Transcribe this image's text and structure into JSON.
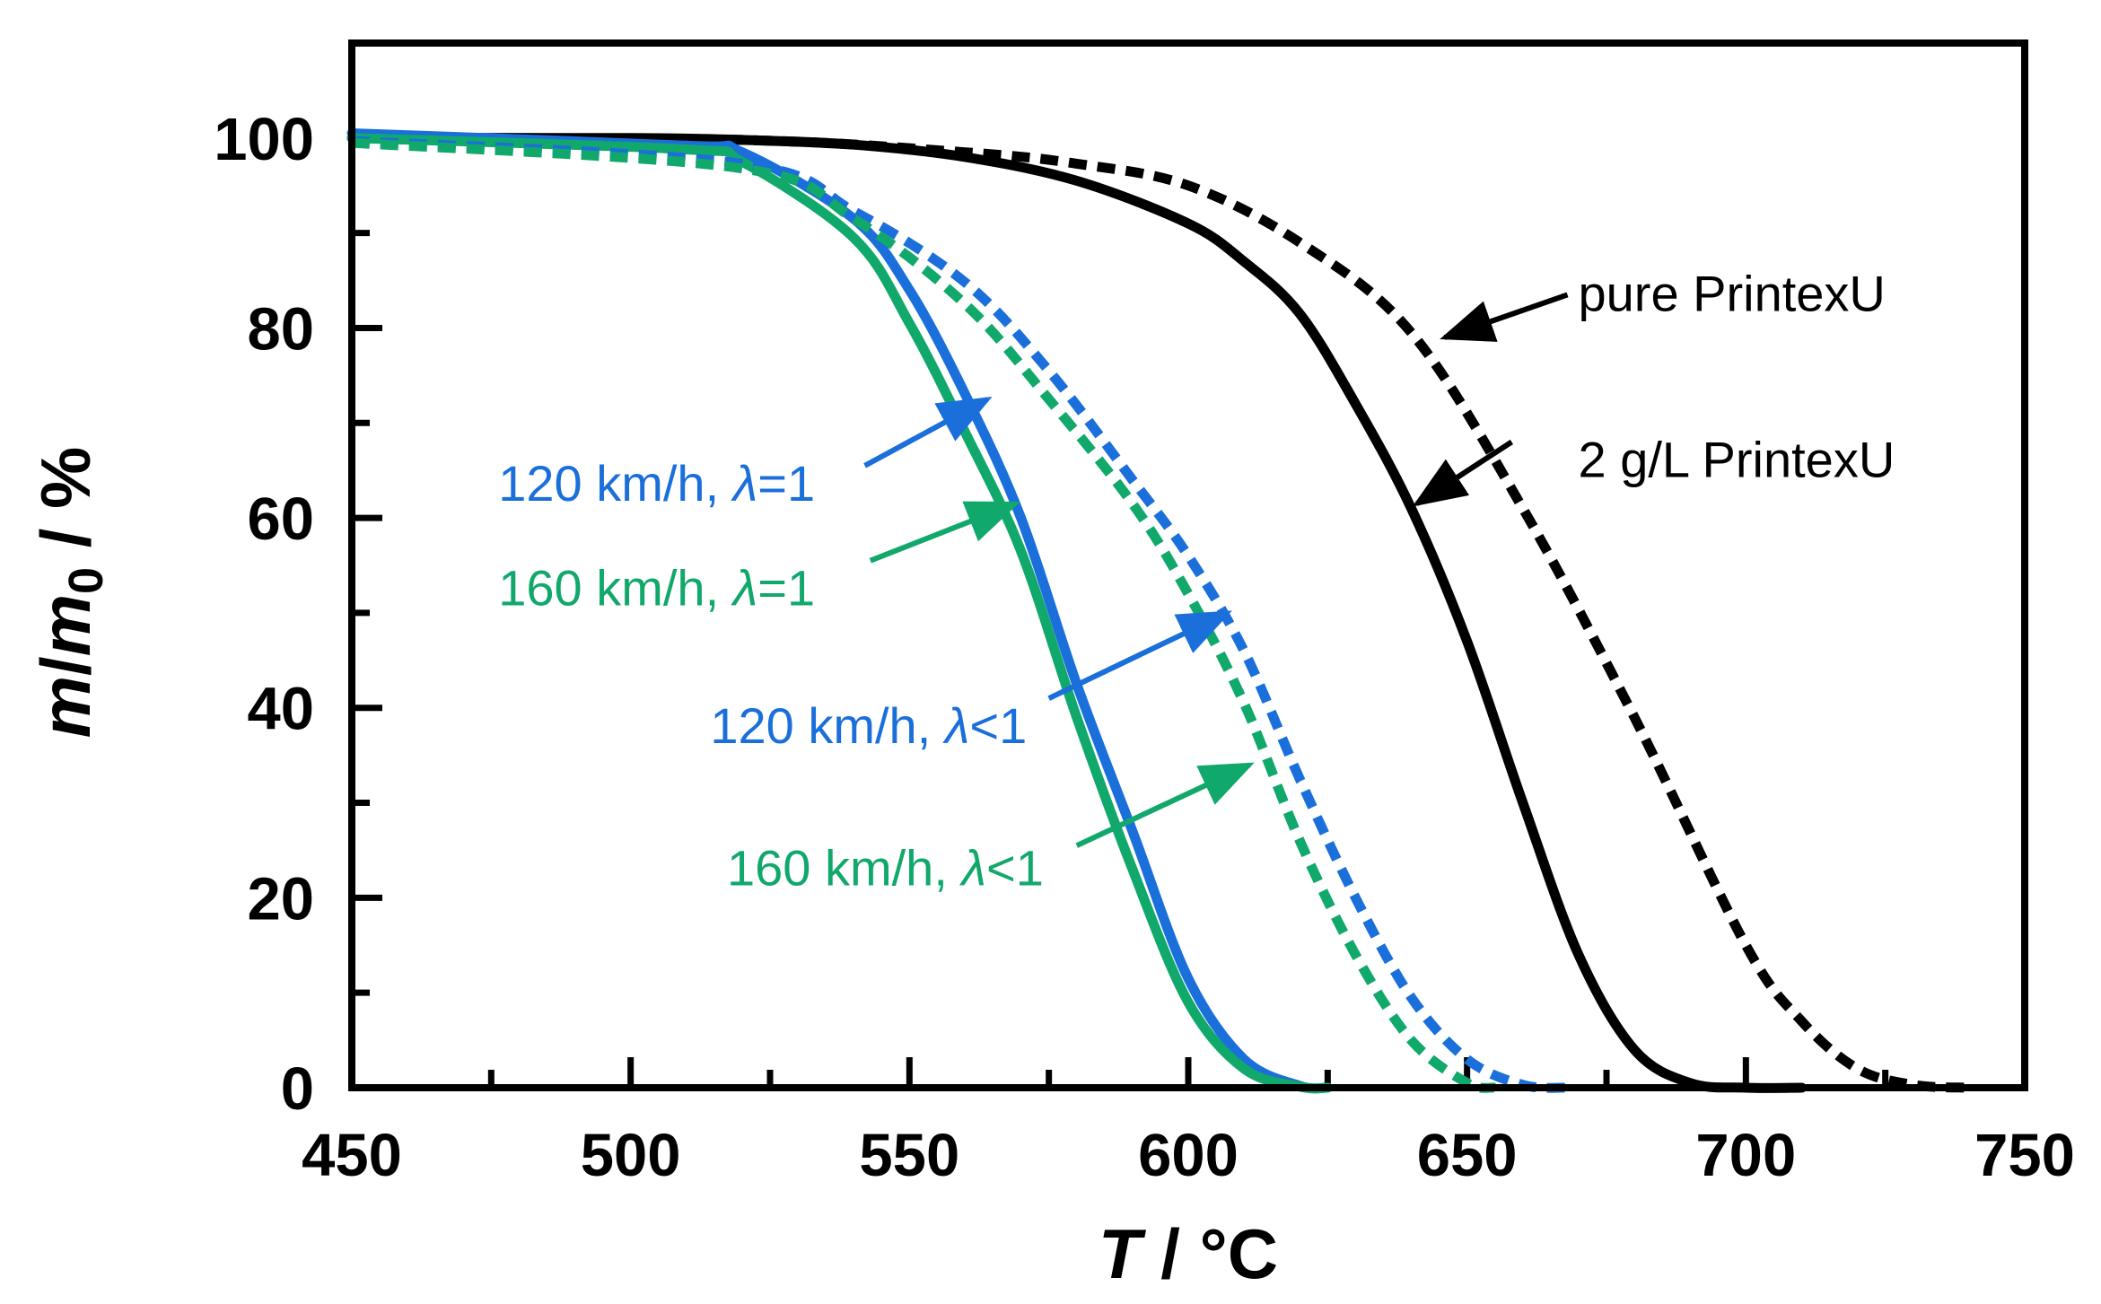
{
  "chart_data": {
    "type": "line",
    "title": "",
    "xlabel": {
      "var": "T",
      "rest": " / °C"
    },
    "ylabel": {
      "m": "m",
      "slash": "/",
      "m0": "m",
      "sub": "0",
      "rest": " / %"
    },
    "xlim": [
      450,
      750
    ],
    "ylim": [
      0,
      110
    ],
    "xticks": [
      450,
      500,
      550,
      600,
      650,
      700,
      750
    ],
    "yticks": [
      0,
      20,
      40,
      60,
      80,
      100
    ],
    "xtick_labels": [
      "450",
      "500",
      "550",
      "600",
      "650",
      "700",
      "750"
    ],
    "ytick_labels": [
      "0",
      "20",
      "40",
      "60",
      "80",
      "100"
    ],
    "grid": false,
    "colors": {
      "black": "#000000",
      "blue": "#1a6fdb",
      "green": "#11a86b"
    },
    "series": [
      {
        "name": "2 g/L PrintexU",
        "color": "black",
        "dash": false,
        "x": [
          450,
          500,
          520,
          540,
          560,
          580,
          600,
          610,
          620,
          630,
          640,
          650,
          660,
          670,
          680,
          690,
          700,
          710
        ],
        "y": [
          100,
          100,
          99.8,
          99.3,
          98,
          95.5,
          91,
          87,
          81.5,
          72,
          61,
          47,
          30,
          14,
          4,
          0.5,
          0,
          0
        ]
      },
      {
        "name": "pure PrintexU",
        "color": "black",
        "dash": true,
        "x": [
          450,
          520,
          560,
          580,
          600,
          620,
          640,
          660,
          680,
          700,
          710,
          720,
          730,
          740
        ],
        "y": [
          100,
          99.8,
          98.5,
          97.3,
          95,
          89,
          79.5,
          61,
          39,
          15,
          7,
          2,
          0.3,
          0
        ]
      },
      {
        "name": "120 km/h, λ=1",
        "color": "blue",
        "dash": false,
        "x": [
          450,
          510,
          520,
          540,
          550,
          560,
          570,
          580,
          590,
          600,
          610,
          620,
          625
        ],
        "y": [
          100.5,
          99.2,
          98.5,
          91.5,
          84,
          73,
          60,
          42.5,
          27,
          11.5,
          3,
          0.2,
          0
        ]
      },
      {
        "name": "160 km/h, λ=1",
        "color": "green",
        "dash": false,
        "x": [
          450,
          510,
          520,
          540,
          550,
          560,
          570,
          580,
          590,
          600,
          610,
          620,
          625
        ],
        "y": [
          100,
          98.8,
          97.5,
          89.5,
          80.5,
          69,
          56.5,
          39,
          23,
          9,
          2,
          0.1,
          0
        ]
      },
      {
        "name": "120 km/h, λ<1",
        "color": "blue",
        "dash": true,
        "x": [
          450,
          520,
          540,
          560,
          575,
          590,
          600,
          610,
          620,
          630,
          640,
          650,
          660,
          668
        ],
        "y": [
          99.7,
          97.3,
          92.3,
          84.8,
          75.5,
          64,
          56,
          46,
          32.5,
          20,
          9.5,
          3,
          0.3,
          0
        ]
      },
      {
        "name": "160 km/h, λ<1",
        "color": "green",
        "dash": true,
        "x": [
          450,
          520,
          540,
          560,
          575,
          590,
          600,
          610,
          620,
          630,
          640,
          650,
          655
        ],
        "y": [
          99.5,
          96.8,
          91.5,
          82.5,
          72.5,
          61.5,
          52,
          40.5,
          26,
          14,
          5,
          0.5,
          0
        ]
      }
    ],
    "annotations": [
      {
        "text": "pure PrintexU",
        "color": "black",
        "tx": 668,
        "ty": 83.5,
        "ax": 668,
        "ay": 83.5,
        "hx": 646,
        "hy": 79,
        "anchor": "start"
      },
      {
        "text": "2 g/L PrintexU",
        "color": "black",
        "tx": 668,
        "ty": 66,
        "ax": 658,
        "ay": 68,
        "hx": 641,
        "hy": 61.5,
        "anchor": "start"
      },
      {
        "text": "120 km/h, λ=1",
        "color": "blue",
        "pre": "120 km/h, ",
        "lam": "λ",
        "post": "=1",
        "tx": 535,
        "ty": 63.5,
        "ax": 542,
        "ay": 65.5,
        "hx": 564,
        "hy": 72.5,
        "anchor": "end"
      },
      {
        "text": "160 km/h, λ=1",
        "color": "green",
        "pre": "160 km/h, ",
        "lam": "λ",
        "post": "=1",
        "tx": 535,
        "ty": 52.5,
        "ax": 543,
        "ay": 55.5,
        "hx": 569,
        "hy": 61.5,
        "anchor": "end"
      },
      {
        "text": "120 km/h, λ<1",
        "color": "blue",
        "pre": "120 km/h, ",
        "lam": "λ",
        "post": "<1",
        "tx": 573,
        "ty": 38,
        "ax": 575,
        "ay": 41,
        "hx": 607,
        "hy": 50,
        "anchor": "end"
      },
      {
        "text": "160 km/h, λ<1",
        "color": "green",
        "pre": "160 km/h, ",
        "lam": "λ",
        "post": "<1",
        "tx": 576,
        "ty": 23,
        "ax": 580,
        "ay": 25.5,
        "hx": 611,
        "hy": 34,
        "anchor": "end"
      }
    ]
  }
}
